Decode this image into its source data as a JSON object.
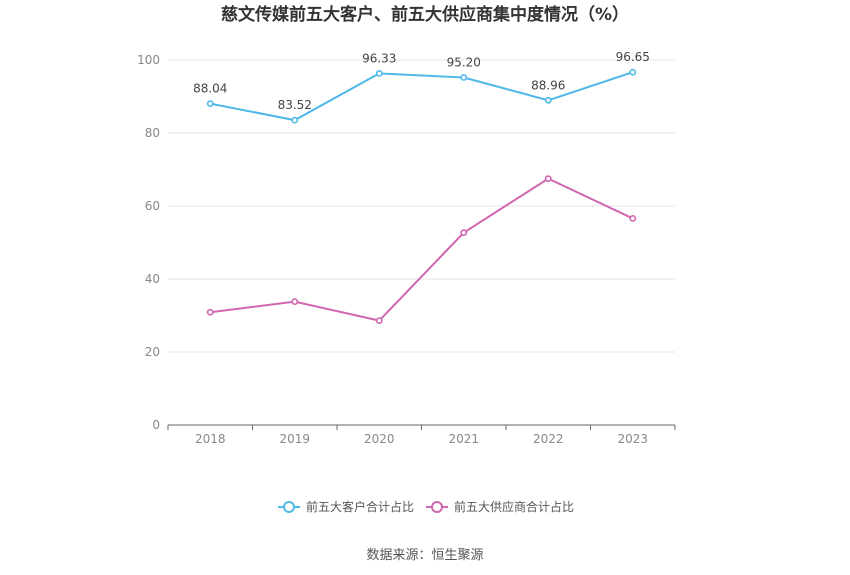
{
  "chart_data": {
    "type": "line",
    "title": "慈文传媒前五大客户、前五大供应商集中度情况（%）",
    "x": [
      "2018",
      "2019",
      "2020",
      "2021",
      "2022",
      "2023"
    ],
    "ylim": [
      0,
      100
    ],
    "yticks": [
      0,
      20,
      40,
      60,
      80,
      100
    ],
    "grid": true,
    "legend_position": "bottom",
    "series": [
      {
        "name": "前五大客户合计占比",
        "color": "#4fb8e8",
        "values": [
          88.04,
          83.52,
          96.33,
          95.2,
          88.96,
          96.65
        ],
        "labels": [
          "88.04",
          "83.52",
          "96.33",
          "95.20",
          "88.96",
          "96.65"
        ]
      },
      {
        "name": "前五大供应商合计占比",
        "color": "#d066b0",
        "values": [
          30.9,
          33.8,
          28.6,
          52.7,
          67.5,
          56.6
        ],
        "labels": []
      }
    ]
  },
  "source": "数据来源：恒生聚源"
}
